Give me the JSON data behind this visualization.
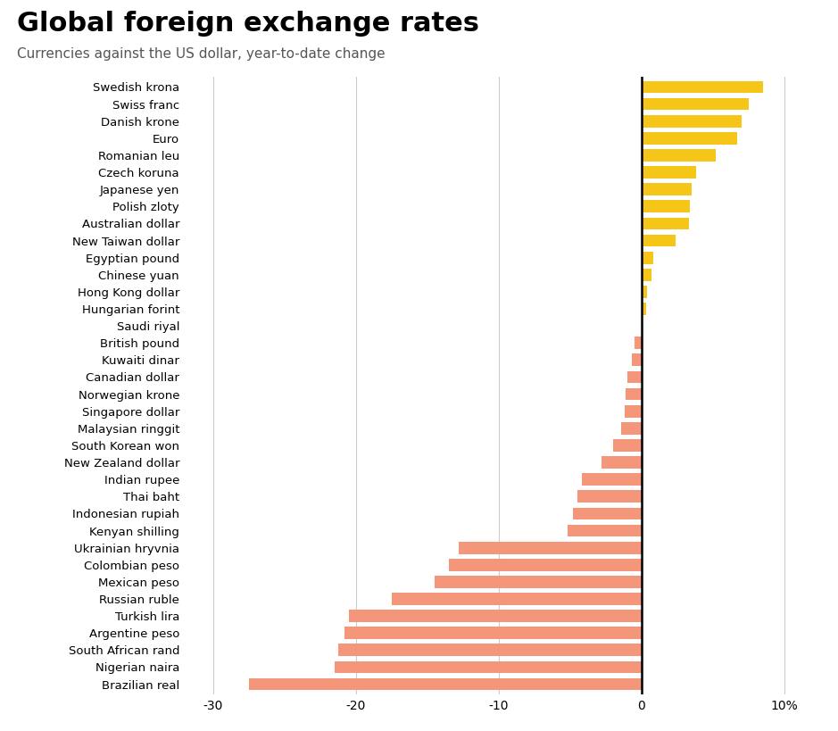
{
  "title": "Global foreign exchange rates",
  "subtitle": "Currencies against the US dollar, year-to-date change",
  "currencies": [
    "Swedish krona",
    "Swiss franc",
    "Danish krone",
    "Euro",
    "Romanian leu",
    "Czech koruna",
    "Japanese yen",
    "Polish zloty",
    "Australian dollar",
    "New Taiwan dollar",
    "Egyptian pound",
    "Chinese yuan",
    "Hong Kong dollar",
    "Hungarian forint",
    "Saudi riyal",
    "British pound",
    "Kuwaiti dinar",
    "Canadian dollar",
    "Norwegian krone",
    "Singapore dollar",
    "Malaysian ringgit",
    "South Korean won",
    "New Zealand dollar",
    "Indian rupee",
    "Thai baht",
    "Indonesian rupiah",
    "Kenyan shilling",
    "Ukrainian hryvnia",
    "Colombian peso",
    "Mexican peso",
    "Russian ruble",
    "Turkish lira",
    "Argentine peso",
    "South African rand",
    "Nigerian naira",
    "Brazilian real"
  ],
  "values": [
    8.5,
    7.5,
    7.0,
    6.7,
    5.2,
    3.8,
    3.5,
    3.4,
    3.3,
    2.4,
    0.8,
    0.7,
    0.4,
    0.3,
    0.0,
    -0.5,
    -0.7,
    -1.0,
    -1.1,
    -1.2,
    -1.4,
    -2.0,
    -2.8,
    -4.2,
    -4.5,
    -4.8,
    -5.2,
    -12.8,
    -13.5,
    -14.5,
    -17.5,
    -20.5,
    -20.8,
    -21.2,
    -21.5,
    -27.5
  ],
  "positive_color": "#F5C518",
  "negative_color": "#F4967A",
  "background_color": "#FFFFFF",
  "title_fontsize": 22,
  "subtitle_fontsize": 11,
  "tick_fontsize": 10,
  "label_fontsize": 9.5,
  "xlim": [
    -32,
    12
  ],
  "xticks": [
    -30,
    -20,
    -10,
    0,
    10
  ],
  "xtick_labels": [
    "-30",
    "-20",
    "-10",
    "0",
    "10%"
  ]
}
